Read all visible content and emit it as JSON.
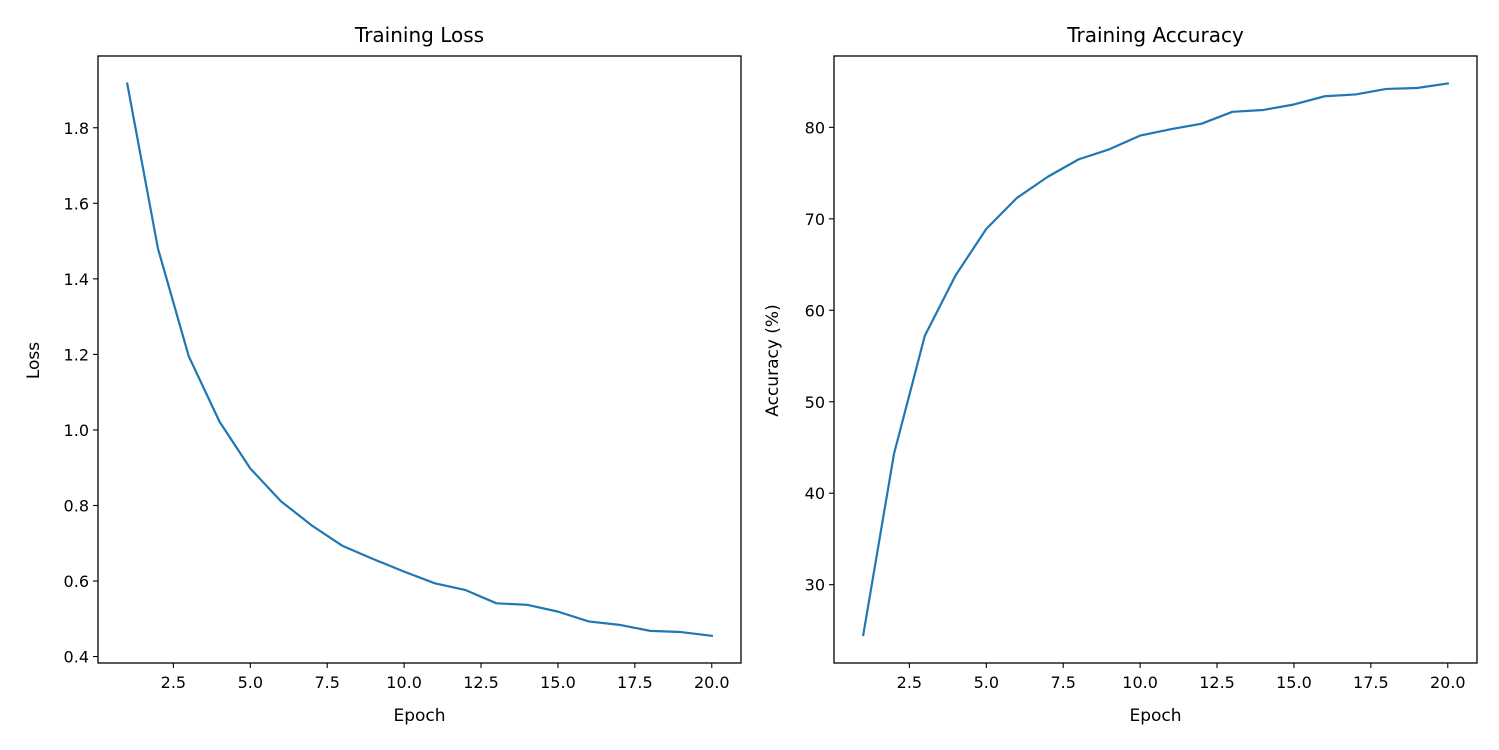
{
  "chart_data": [
    {
      "type": "line",
      "title": "Training Loss",
      "xlabel": "Epoch",
      "ylabel": "Loss",
      "xlim": [
        0.05,
        20.95
      ],
      "ylim": [
        0.383,
        1.99
      ],
      "xticks": [
        2.5,
        5.0,
        7.5,
        10.0,
        12.5,
        15.0,
        17.5,
        20.0
      ],
      "xtick_labels": [
        "2.5",
        "5.0",
        "7.5",
        "10.0",
        "12.5",
        "15.0",
        "17.5",
        "20.0"
      ],
      "yticks": [
        0.4,
        0.6,
        0.8,
        1.0,
        1.2,
        1.4,
        1.6,
        1.8
      ],
      "ytick_labels": [
        "0.4",
        "0.6",
        "0.8",
        "1.0",
        "1.2",
        "1.4",
        "1.6",
        "1.8"
      ],
      "grid": false,
      "color": "#1f77b4",
      "x": [
        1,
        2,
        3,
        4,
        5,
        6,
        7,
        8,
        9,
        10,
        11,
        12,
        13,
        14,
        15,
        16,
        17,
        18,
        19,
        20
      ],
      "y": [
        1.917,
        1.48,
        1.195,
        1.022,
        0.898,
        0.811,
        0.747,
        0.693,
        0.658,
        0.625,
        0.594,
        0.576,
        0.541,
        0.537,
        0.519,
        0.493,
        0.484,
        0.468,
        0.465,
        0.455
      ]
    },
    {
      "type": "line",
      "title": "Training Accuracy",
      "xlabel": "Epoch",
      "ylabel": "Accuracy (%)",
      "xlim": [
        0.05,
        20.95
      ],
      "ylim": [
        21.44,
        87.8
      ],
      "xticks": [
        2.5,
        5.0,
        7.5,
        10.0,
        12.5,
        15.0,
        17.5,
        20.0
      ],
      "xtick_labels": [
        "2.5",
        "5.0",
        "7.5",
        "10.0",
        "12.5",
        "15.0",
        "17.5",
        "20.0"
      ],
      "yticks": [
        30,
        40,
        50,
        60,
        70,
        80
      ],
      "ytick_labels": [
        "30",
        "40",
        "50",
        "60",
        "70",
        "80"
      ],
      "grid": false,
      "color": "#1f77b4",
      "x": [
        1,
        2,
        3,
        4,
        5,
        6,
        7,
        8,
        9,
        10,
        11,
        12,
        13,
        14,
        15,
        16,
        17,
        18,
        19,
        20
      ],
      "y": [
        24.5,
        44.3,
        57.2,
        63.8,
        68.9,
        72.3,
        74.6,
        76.5,
        77.6,
        79.1,
        79.8,
        80.4,
        81.7,
        81.9,
        82.5,
        83.4,
        83.6,
        84.2,
        84.3,
        84.8
      ]
    }
  ]
}
